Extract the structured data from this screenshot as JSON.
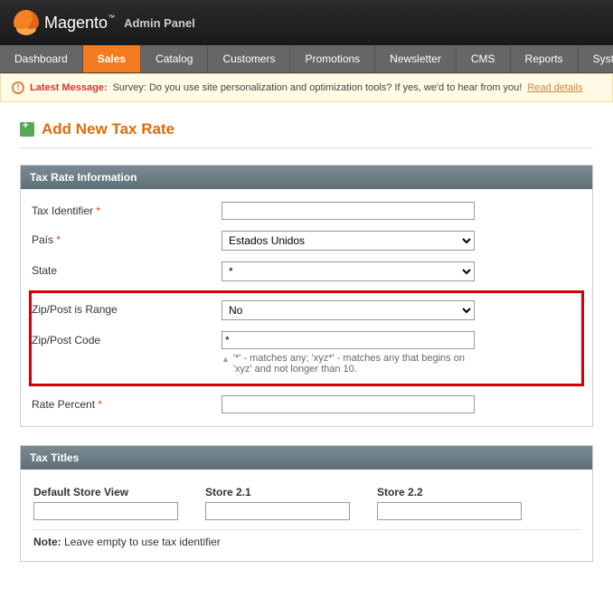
{
  "header": {
    "brand": "Magento",
    "tm": "™",
    "panel": "Admin Panel"
  },
  "nav": [
    {
      "label": "Dashboard",
      "active": false
    },
    {
      "label": "Sales",
      "active": true
    },
    {
      "label": "Catalog",
      "active": false
    },
    {
      "label": "Customers",
      "active": false
    },
    {
      "label": "Promotions",
      "active": false
    },
    {
      "label": "Newsletter",
      "active": false
    },
    {
      "label": "CMS",
      "active": false
    },
    {
      "label": "Reports",
      "active": false
    },
    {
      "label": "Syste",
      "active": false
    }
  ],
  "message": {
    "label": "Latest Message:",
    "text": "Survey: Do you use site personalization and optimization tools? If yes, we'd to hear from you!",
    "link": "Read details"
  },
  "page": {
    "title": "Add New Tax Rate"
  },
  "panel1": {
    "title": "Tax Rate Information",
    "fields": {
      "tax_identifier_label": "Tax Identifier",
      "tax_identifier_value": "",
      "pais_label": "País",
      "pais_value": "Estados Unidos",
      "state_label": "State",
      "state_value": "*",
      "zip_range_label": "Zip/Post is Range",
      "zip_range_value": "No",
      "zip_code_label": "Zip/Post Code",
      "zip_code_value": "*",
      "zip_code_hint": "'*' - matches any; 'xyz*' - matches any that begins on 'xyz' and not longer than 10.",
      "rate_label": "Rate Percent",
      "rate_value": ""
    }
  },
  "panel2": {
    "title": "Tax Titles",
    "columns": [
      {
        "label": "Default Store View",
        "value": ""
      },
      {
        "label": "Store 2.1",
        "value": ""
      },
      {
        "label": "Store 2.2",
        "value": ""
      }
    ],
    "note_label": "Note:",
    "note_text": "Leave empty to use tax identifier"
  },
  "colors": {
    "nav_bg": "#666666",
    "nav_active": "#f47b20",
    "header_bg": "#222222",
    "title_color": "#e26b0a",
    "panel_head_from": "#7a8b93",
    "panel_head_to": "#5f6f77",
    "highlight_border": "#d40000",
    "msg_bg": "#fffbe6",
    "required": "#dd4400"
  }
}
